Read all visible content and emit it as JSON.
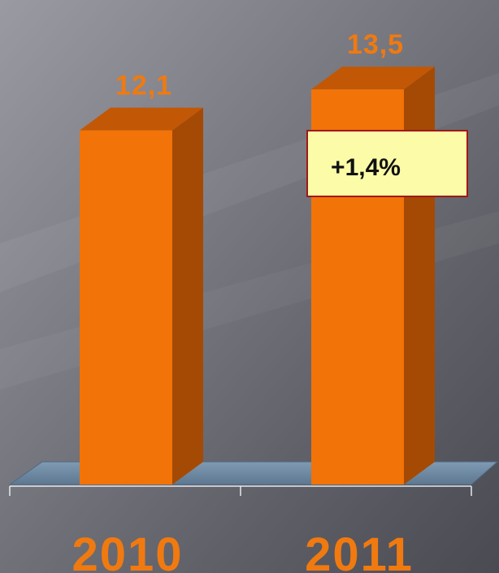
{
  "chart_data": {
    "type": "bar",
    "categories": [
      "2010",
      "2011"
    ],
    "values": [
      12.1,
      13.5
    ],
    "value_labels": [
      "12,1",
      "13,5"
    ],
    "title": "",
    "xlabel": "",
    "ylabel": "",
    "ylim": [
      0,
      16
    ],
    "grid": false,
    "legend": "none",
    "annotation": {
      "text": "+1,4%",
      "category": "2011"
    },
    "colors": {
      "bar_front": "#f27308",
      "bar_side": "#a54a05",
      "bar_top": "#c25805",
      "label": "#f07a10",
      "floor": "#6f8ba5",
      "annotation_bg": "#fbfba8",
      "annotation_border": "#a01818",
      "annotation_text": "#111111"
    }
  }
}
